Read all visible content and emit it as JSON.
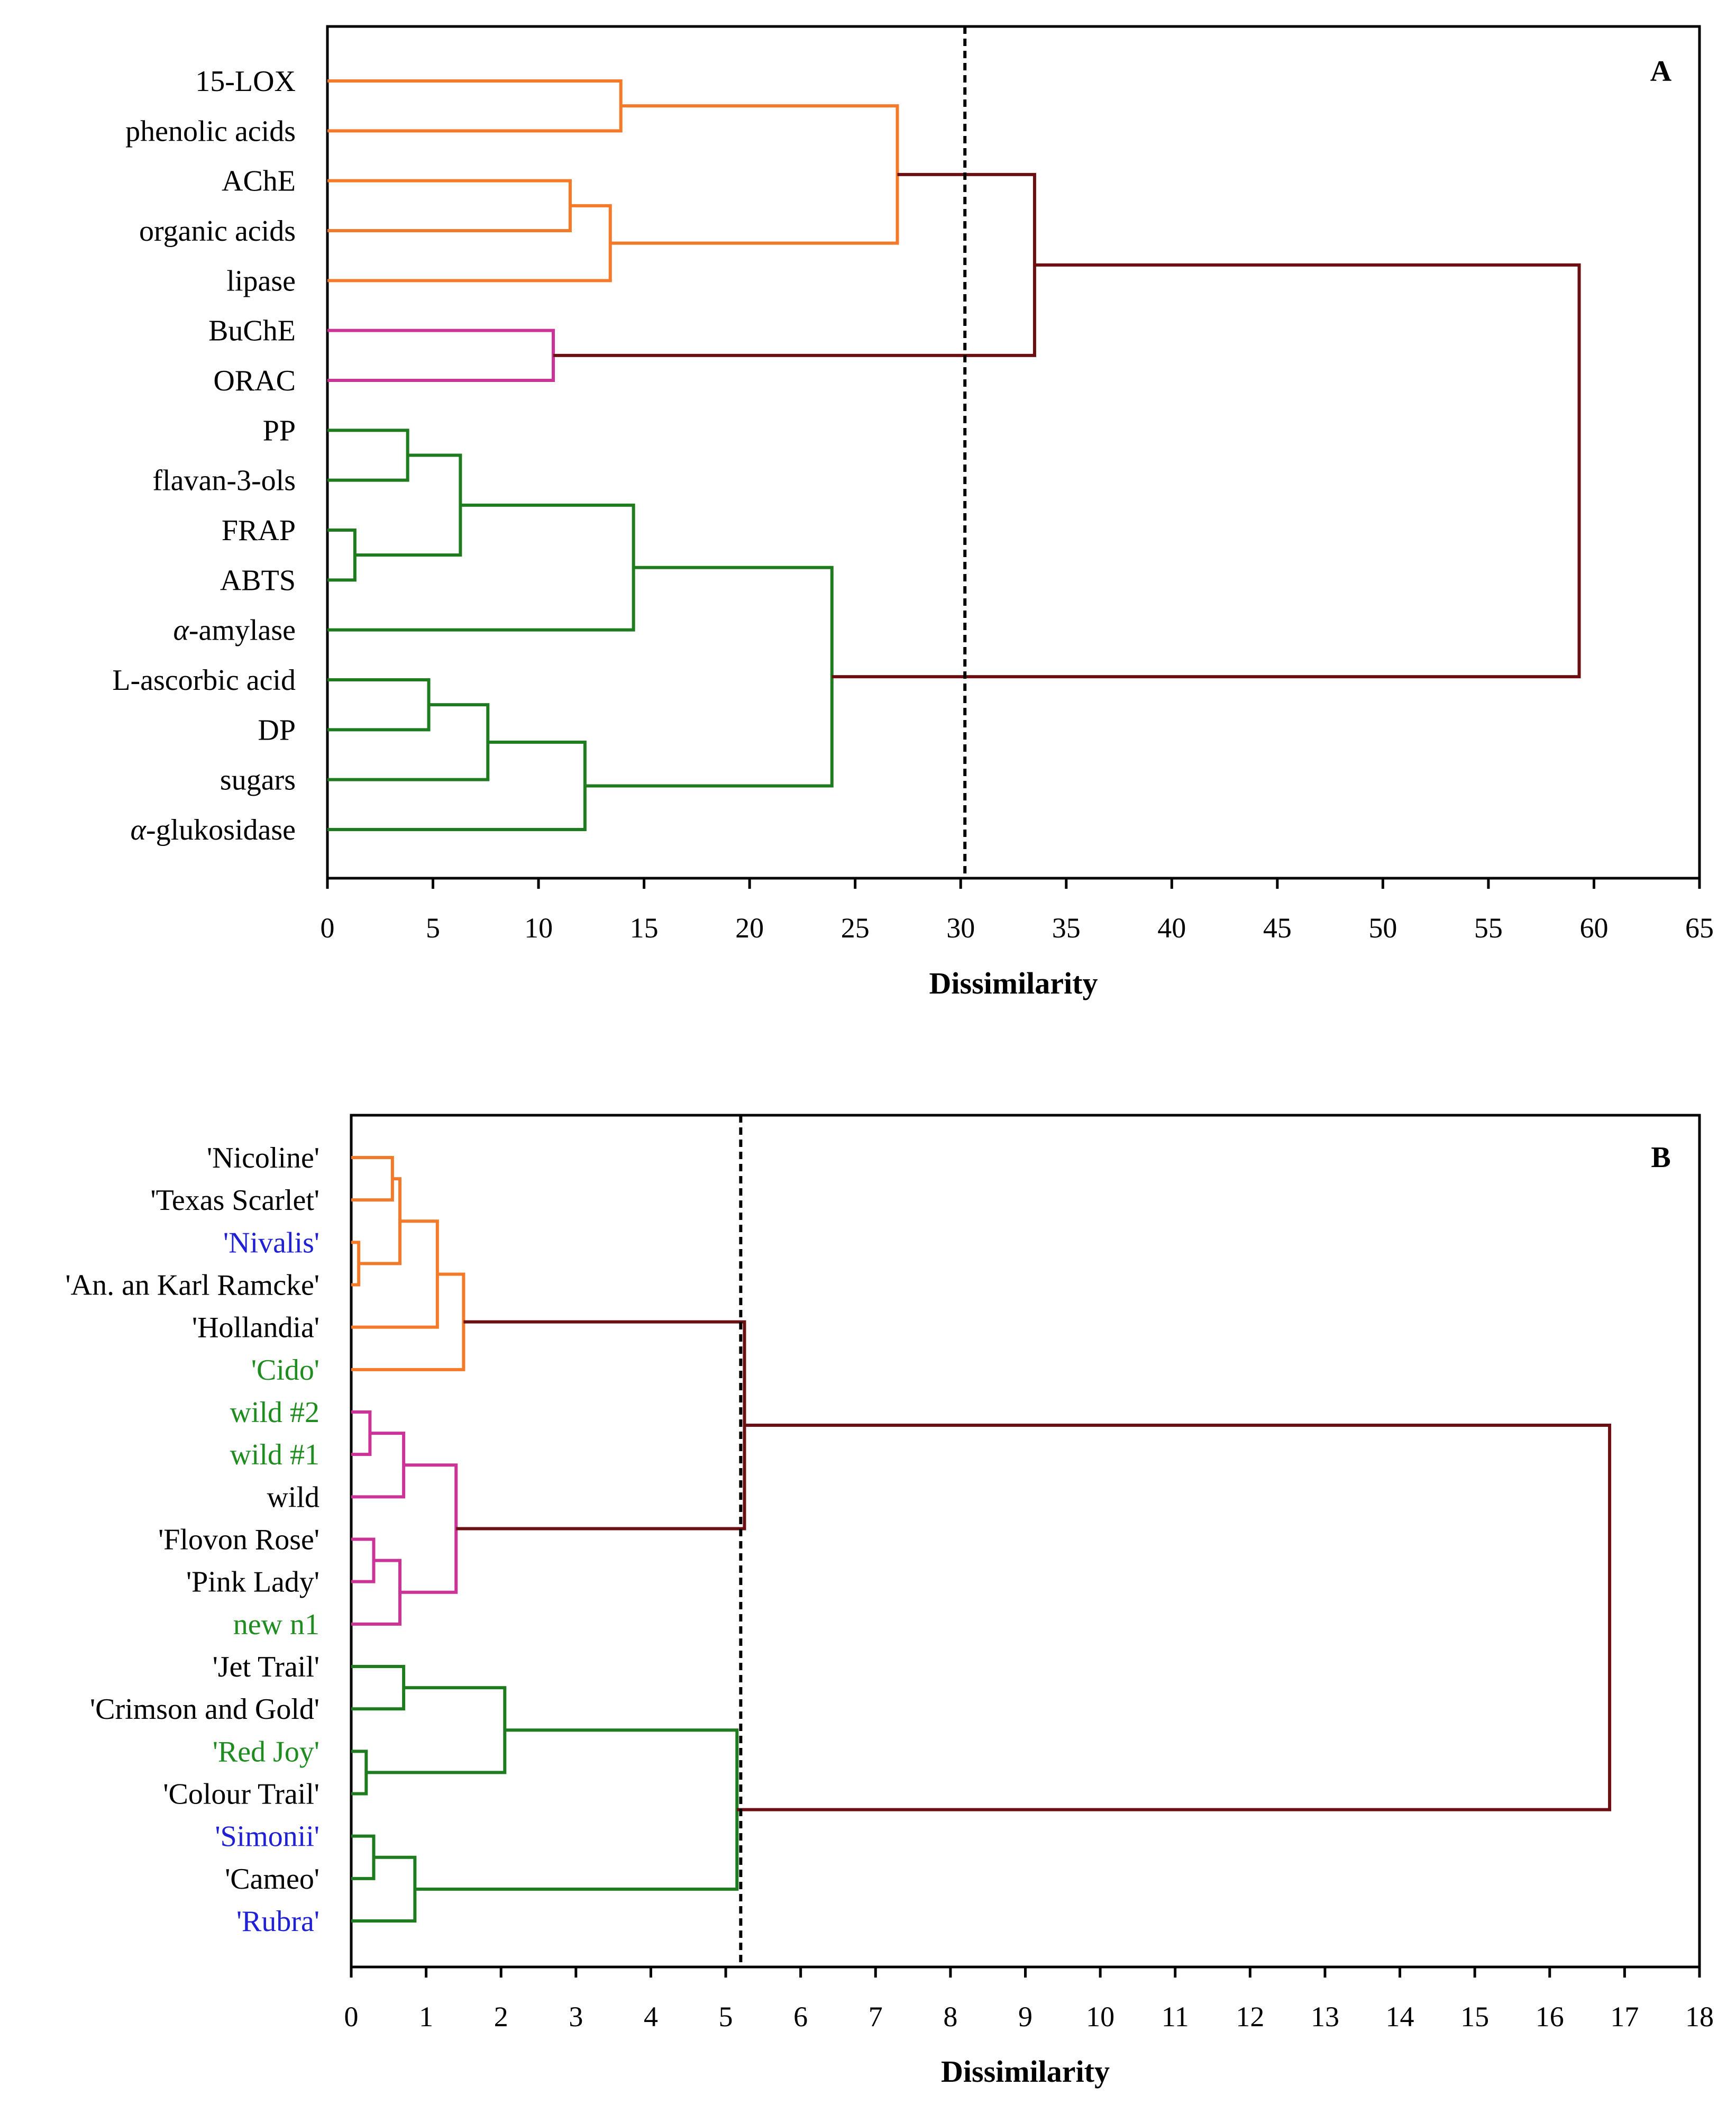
{
  "chart_data": [
    {
      "type": "dendrogram",
      "panel": "A",
      "xlabel": "Dissimilarity",
      "xlim": [
        0,
        65
      ],
      "xticks": [
        "0",
        "5",
        "10",
        "15",
        "20",
        "25",
        "30",
        "35",
        "40",
        "45",
        "50",
        "55",
        "60",
        "65"
      ],
      "cutoff": 30.2,
      "leaves": [
        {
          "label": "15-LOX",
          "italic_prefix": "",
          "color": "#000000"
        },
        {
          "label": "phenolic acids",
          "italic_prefix": "",
          "color": "#000000"
        },
        {
          "label": "AChE",
          "italic_prefix": "",
          "color": "#000000"
        },
        {
          "label": "organic acids",
          "italic_prefix": "",
          "color": "#000000"
        },
        {
          "label": "lipase",
          "italic_prefix": "",
          "color": "#000000"
        },
        {
          "label": "BuChE",
          "italic_prefix": "",
          "color": "#000000"
        },
        {
          "label": "ORAC",
          "italic_prefix": "",
          "color": "#000000"
        },
        {
          "label": "PP",
          "italic_prefix": "",
          "color": "#000000"
        },
        {
          "label": "flavan-3-ols",
          "italic_prefix": "",
          "color": "#000000"
        },
        {
          "label": "FRAP",
          "italic_prefix": "",
          "color": "#000000"
        },
        {
          "label": "ABTS",
          "italic_prefix": "",
          "color": "#000000"
        },
        {
          "label": "-amylase",
          "italic_prefix": "α",
          "color": "#000000"
        },
        {
          "label": "L-ascorbic acid",
          "italic_prefix": "",
          "color": "#000000"
        },
        {
          "label": "DP",
          "italic_prefix": "",
          "color": "#000000"
        },
        {
          "label": "sugars",
          "italic_prefix": "",
          "color": "#000000"
        },
        {
          "label": "-glukosidase",
          "italic_prefix": "α",
          "color": "#000000"
        }
      ],
      "merges": [
        {
          "a": "L0",
          "b": "L1",
          "h": 13.9,
          "color": "#F47A2A"
        },
        {
          "a": "L2",
          "b": "L3",
          "h": 11.5,
          "color": "#F47A2A"
        },
        {
          "a": "M1",
          "b": "L4",
          "h": 13.4,
          "color": "#F47A2A"
        },
        {
          "a": "M0",
          "b": "M2",
          "h": 27.0,
          "color": "#F47A2A"
        },
        {
          "a": "L5",
          "b": "L6",
          "h": 10.7,
          "color": "#CC3399"
        },
        {
          "a": "M3",
          "b": "M4",
          "h": 33.5,
          "color": "#6B0F12"
        },
        {
          "a": "L7",
          "b": "L8",
          "h": 3.8,
          "color": "#1E7B1E"
        },
        {
          "a": "L9",
          "b": "L10",
          "h": 1.3,
          "color": "#1E7B1E"
        },
        {
          "a": "M6",
          "b": "M7",
          "h": 6.3,
          "color": "#1E7B1E"
        },
        {
          "a": "M8",
          "b": "L11",
          "h": 14.5,
          "color": "#1E7B1E"
        },
        {
          "a": "L12",
          "b": "L13",
          "h": 4.8,
          "color": "#1E7B1E"
        },
        {
          "a": "M10",
          "b": "L14",
          "h": 7.6,
          "color": "#1E7B1E"
        },
        {
          "a": "M11",
          "b": "L15",
          "h": 12.2,
          "color": "#1E7B1E"
        },
        {
          "a": "M9",
          "b": "M12",
          "h": 23.9,
          "color": "#1E7B1E"
        },
        {
          "a": "M5",
          "b": "M13",
          "h": 59.3,
          "color": "#6B0F12"
        }
      ]
    },
    {
      "type": "dendrogram",
      "panel": "B",
      "xlabel": "Dissimilarity",
      "xlim": [
        0,
        18
      ],
      "xticks": [
        "0",
        "1",
        "2",
        "3",
        "4",
        "5",
        "6",
        "7",
        "8",
        "9",
        "10",
        "11",
        "12",
        "13",
        "14",
        "15",
        "16",
        "17",
        "18"
      ],
      "cutoff": 5.2,
      "leaves": [
        {
          "label": "'Nicoline'",
          "italic_prefix": "",
          "color": "#000000"
        },
        {
          "label": "'Texas Scarlet'",
          "italic_prefix": "",
          "color": "#000000"
        },
        {
          "label": "'Nivalis'",
          "italic_prefix": "",
          "color": "#1F1FD6"
        },
        {
          "label": "'An. an Karl Ramcke'",
          "italic_prefix": "",
          "color": "#000000"
        },
        {
          "label": "'Hollandia'",
          "italic_prefix": "",
          "color": "#000000"
        },
        {
          "label": "'Cido'",
          "italic_prefix": "",
          "color": "#1E8C1E"
        },
        {
          "label": "wild #2",
          "italic_prefix": "",
          "color": "#1E8C1E"
        },
        {
          "label": "wild #1",
          "italic_prefix": "",
          "color": "#1E8C1E"
        },
        {
          "label": "wild",
          "italic_prefix": "",
          "color": "#000000"
        },
        {
          "label": "'Flovon Rose'",
          "italic_prefix": "",
          "color": "#000000"
        },
        {
          "label": "'Pink Lady'",
          "italic_prefix": "",
          "color": "#000000"
        },
        {
          "label": "new n1",
          "italic_prefix": "",
          "color": "#1E8C1E"
        },
        {
          "label": "'Jet Trail'",
          "italic_prefix": "",
          "color": "#000000"
        },
        {
          "label": "'Crimson and Gold'",
          "italic_prefix": "",
          "color": "#000000"
        },
        {
          "label": "'Red Joy'",
          "italic_prefix": "",
          "color": "#1E8C1E"
        },
        {
          "label": "'Colour Trail'",
          "italic_prefix": "",
          "color": "#000000"
        },
        {
          "label": "'Simonii'",
          "italic_prefix": "",
          "color": "#1F1FD6"
        },
        {
          "label": "'Cameo'",
          "italic_prefix": "",
          "color": "#000000"
        },
        {
          "label": "'Rubra'",
          "italic_prefix": "",
          "color": "#1F1FD6"
        }
      ],
      "merges": [
        {
          "a": "L2",
          "b": "L3",
          "h": 0.1,
          "color": "#F47A2A"
        },
        {
          "a": "L0",
          "b": "L1",
          "h": 0.55,
          "color": "#F47A2A"
        },
        {
          "a": "M1",
          "b": "M0",
          "h": 0.65,
          "color": "#F47A2A"
        },
        {
          "a": "M2",
          "b": "L4",
          "h": 1.15,
          "color": "#F47A2A"
        },
        {
          "a": "M3",
          "b": "L5",
          "h": 1.5,
          "color": "#F47A2A"
        },
        {
          "a": "L6",
          "b": "L7",
          "h": 0.25,
          "color": "#CC3399"
        },
        {
          "a": "M5",
          "b": "L8",
          "h": 0.7,
          "color": "#CC3399"
        },
        {
          "a": "L9",
          "b": "L10",
          "h": 0.3,
          "color": "#CC3399"
        },
        {
          "a": "M7",
          "b": "L11",
          "h": 0.65,
          "color": "#CC3399"
        },
        {
          "a": "M6",
          "b": "M8",
          "h": 1.4,
          "color": "#CC3399"
        },
        {
          "a": "M4",
          "b": "M9",
          "h": 5.25,
          "color": "#6B0F12"
        },
        {
          "a": "L12",
          "b": "L13",
          "h": 0.7,
          "color": "#1E7B1E"
        },
        {
          "a": "L14",
          "b": "L15",
          "h": 0.2,
          "color": "#1E7B1E"
        },
        {
          "a": "M11",
          "b": "M12",
          "h": 2.05,
          "color": "#1E7B1E"
        },
        {
          "a": "L16",
          "b": "L17",
          "h": 0.3,
          "color": "#1E7B1E"
        },
        {
          "a": "M14",
          "b": "L18",
          "h": 0.85,
          "color": "#1E7B1E"
        },
        {
          "a": "M13",
          "b": "M15",
          "h": 5.15,
          "color": "#1E7B1E"
        },
        {
          "a": "M10",
          "b": "M16",
          "h": 16.8,
          "color": "#6B0F12"
        }
      ]
    }
  ]
}
